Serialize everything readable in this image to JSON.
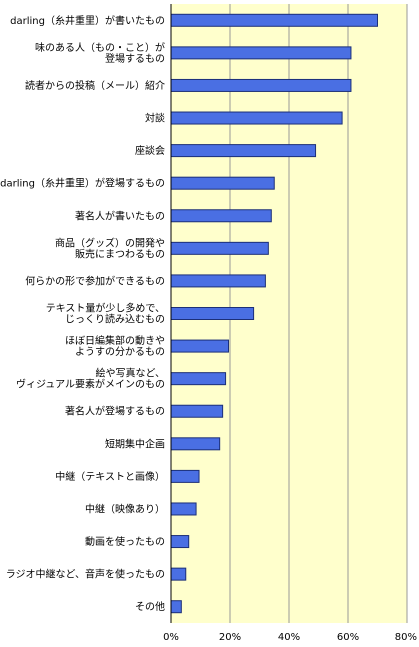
{
  "chart_data": {
    "type": "bar",
    "orientation": "horizontal",
    "title": "",
    "xlabel": "",
    "ylabel": "",
    "xlim": [
      0,
      80
    ],
    "grid": true,
    "legend": "none",
    "colors": {
      "bar": "#4a6fe3",
      "bar_stroke": "#1c2f78",
      "plot_bg": "#ffffcc",
      "grid": "#999999",
      "axis": "#000000"
    },
    "categories": [
      [
        "darling（糸井重里）が書いたもの"
      ],
      [
        "味のある人（もの・こと）が",
        "登場するもの"
      ],
      [
        "読者からの投稿（メール）紹介"
      ],
      [
        "対談"
      ],
      [
        "座談会"
      ],
      [
        "darling（糸井重里）が登場するもの"
      ],
      [
        "著名人が書いたもの"
      ],
      [
        "商品（グッズ）の開発や",
        "販売にまつわるもの"
      ],
      [
        "何らかの形で参加ができるもの"
      ],
      [
        "テキスト量が少し多めで、",
        "じっくり読み込むもの"
      ],
      [
        "ほぼ日編集部の動きや",
        "ようすの分かるもの"
      ],
      [
        "絵や写真など、",
        "ヴィジュアル要素がメインのもの"
      ],
      [
        "著名人が登場するもの"
      ],
      [
        "短期集中企画"
      ],
      [
        "中継（テキストと画像）"
      ],
      [
        "中継（映像あり）"
      ],
      [
        "動画を使ったもの"
      ],
      [
        "ラジオ中継など、音声を使ったもの"
      ],
      [
        "その他"
      ]
    ],
    "values": [
      70,
      61,
      61,
      58,
      49,
      35,
      34,
      33,
      32,
      28,
      19.5,
      18.5,
      17.5,
      16.5,
      9.5,
      8.5,
      6,
      5,
      3.5
    ],
    "x_ticks": [
      "0%",
      "20%",
      "40%",
      "60%",
      "80%"
    ],
    "x_tick_values": [
      0,
      20,
      40,
      60,
      80
    ]
  }
}
